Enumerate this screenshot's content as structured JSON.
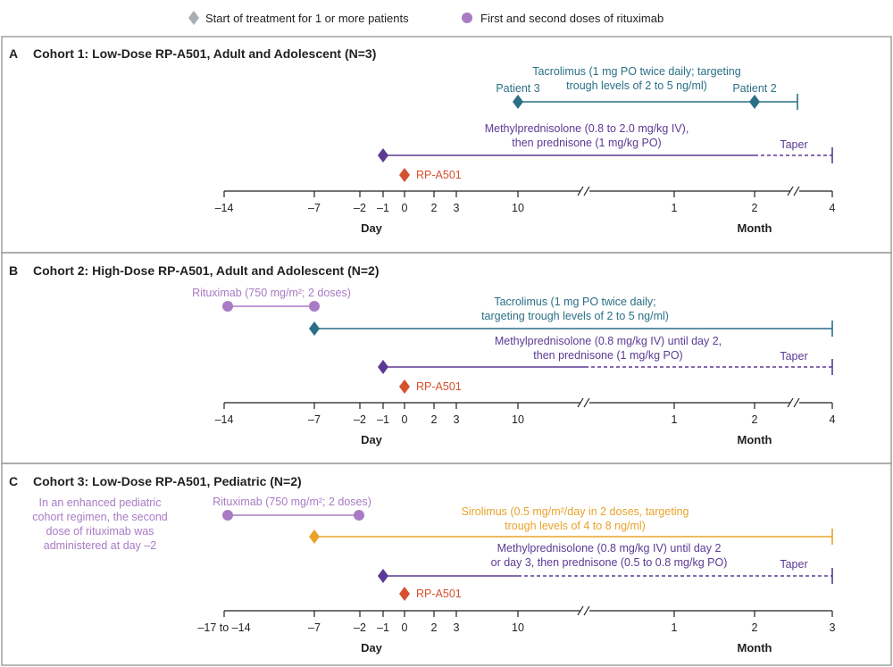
{
  "legend": {
    "diamond_label": "Start of treatment for 1 or more patients",
    "circle_label": "First and second doses of rituximab"
  },
  "colors": {
    "tacrolimus": "#2a6f86",
    "steroid": "#5b3a93",
    "rp": "#d4512f",
    "rituximab": "#a97bc4",
    "sirolimus": "#e8a32b",
    "legend_diamond": "#a8aeb3",
    "legend_circle": "#a97bc4",
    "border": "#888888",
    "axis": "#231f20",
    "note": "#a97bc4"
  },
  "panels": [
    {
      "id": "cohort-1",
      "letter": "A",
      "title": "Cohort 1: Low-Dose RP-A501, Adult and Adolescent (N=3)",
      "note": [],
      "axis": {
        "ticks": [
          "–14",
          "–7",
          "–2",
          "–1",
          "0",
          "2",
          "3",
          "10",
          "1",
          "2",
          "4"
        ],
        "day_label": "Day",
        "month_label": "Month"
      },
      "treatments": [
        {
          "key": "tacrolimus",
          "label": [
            "Tacrolimus (1 mg PO twice daily; targeting",
            "trough levels of 2 to 5 ng/ml)"
          ],
          "markers": [
            "Patient 3",
            "Patient 2"
          ]
        },
        {
          "key": "steroid",
          "label": [
            "Methylprednisolone (0.8 to 2.0 mg/kg IV),",
            "then prednisone (1 mg/kg PO)"
          ],
          "taper": "Taper"
        },
        {
          "key": "rp",
          "label": [
            "RP-A501"
          ]
        }
      ]
    },
    {
      "id": "cohort-2",
      "letter": "B",
      "title": "Cohort 2: High-Dose RP-A501, Adult and Adolescent (N=2)",
      "note": [],
      "axis": {
        "ticks": [
          "–14",
          "–7",
          "–2",
          "–1",
          "0",
          "2",
          "3",
          "10",
          "1",
          "2",
          "4"
        ],
        "day_label": "Day",
        "month_label": "Month"
      },
      "treatments": [
        {
          "key": "rituximab",
          "label": [
            "Rituximab (750 mg/m²; 2 doses)"
          ]
        },
        {
          "key": "tacrolimus",
          "label": [
            "Tacrolimus (1 mg PO twice daily;",
            "targeting trough levels of 2 to 5 ng/ml)"
          ]
        },
        {
          "key": "steroid",
          "label": [
            "Methylprednisolone (0.8 mg/kg IV) until day 2,",
            "then prednisone (1 mg/kg PO)"
          ],
          "taper": "Taper"
        },
        {
          "key": "rp",
          "label": [
            "RP-A501"
          ]
        }
      ]
    },
    {
      "id": "cohort-3",
      "letter": "C",
      "title": "Cohort 3: Low-Dose RP-A501, Pediatric (N=2)",
      "note": [
        "In an enhanced pediatric",
        "cohort regimen, the second",
        "dose of rituximab was",
        "administered at day –2"
      ],
      "axis": {
        "ticks": [
          "–17 to –14",
          "–7",
          "–2",
          "–1",
          "0",
          "2",
          "3",
          "10",
          "1",
          "2",
          "3"
        ],
        "day_label": "Day",
        "month_label": "Month"
      },
      "treatments": [
        {
          "key": "rituximab",
          "label": [
            "Rituximab (750 mg/m²; 2 doses)"
          ]
        },
        {
          "key": "sirolimus",
          "label": [
            "Sirolimus (0.5 mg/m²/day in 2 doses, targeting",
            "trough levels of 4 to 8 ng/ml)"
          ]
        },
        {
          "key": "steroid",
          "label": [
            "Methylprednisolone (0.8 mg/kg IV) until day 2",
            "or day 3, then prednisone (0.5 to 0.8 mg/kg PO)"
          ],
          "taper": "Taper"
        },
        {
          "key": "rp",
          "label": [
            "RP-A501"
          ]
        }
      ]
    }
  ]
}
